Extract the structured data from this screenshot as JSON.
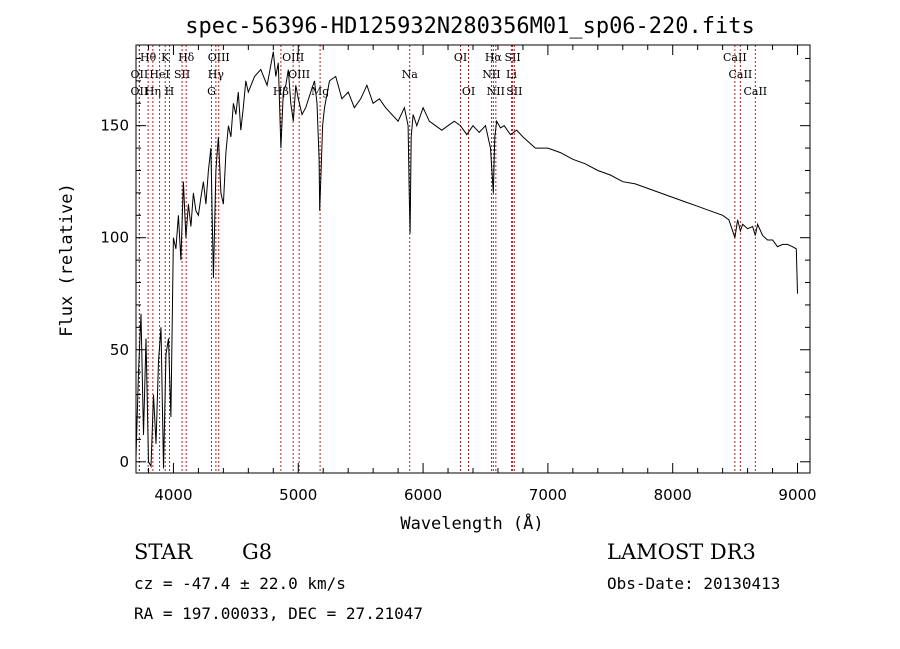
{
  "chart_data": {
    "type": "line",
    "title": "spec-56396-HD125932N280356M01_sp06-220.fits",
    "xlabel": "Wavelength (Å)",
    "ylabel": "Flux (relative)",
    "xlim": [
      3700,
      9100
    ],
    "ylim": [
      -5,
      186
    ],
    "x_ticks": [
      4000,
      5000,
      6000,
      7000,
      8000,
      9000
    ],
    "y_ticks": [
      0,
      50,
      100,
      150
    ],
    "grid": false,
    "line_color": "#000000",
    "marker_color": "#b22222",
    "series": [
      {
        "x": [
          3700,
          3720,
          3740,
          3760,
          3780,
          3800,
          3820,
          3840,
          3860,
          3880,
          3900,
          3920,
          3940,
          3960,
          3980,
          4000,
          4020,
          4040,
          4060,
          4080,
          4100,
          4120,
          4140,
          4160,
          4180,
          4200,
          4220,
          4240,
          4260,
          4280,
          4300,
          4320,
          4340,
          4360,
          4380,
          4400,
          4420,
          4440,
          4460,
          4480,
          4500,
          4520,
          4540,
          4560,
          4580,
          4600,
          4650,
          4700,
          4750,
          4800,
          4820,
          4840,
          4861,
          4880,
          4900,
          4920,
          4940,
          4960,
          4980,
          5000,
          5030,
          5060,
          5100,
          5130,
          5150,
          5167,
          5172,
          5183,
          5195,
          5210,
          5250,
          5300,
          5350,
          5400,
          5450,
          5500,
          5550,
          5600,
          5650,
          5700,
          5750,
          5800,
          5850,
          5880,
          5890,
          5896,
          5905,
          5920,
          5950,
          6000,
          6050,
          6100,
          6150,
          6200,
          6250,
          6300,
          6350,
          6400,
          6450,
          6500,
          6540,
          6563,
          6575,
          6590,
          6620,
          6650,
          6700,
          6750,
          6800,
          6900,
          7000,
          7100,
          7200,
          7300,
          7400,
          7500,
          7600,
          7700,
          7800,
          7900,
          8000,
          8100,
          8200,
          8300,
          8400,
          8450,
          8498,
          8520,
          8542,
          8560,
          8600,
          8640,
          8662,
          8680,
          8720,
          8760,
          8800,
          8840,
          8880,
          8920,
          8960,
          8990,
          9000
        ],
        "y": [
          2,
          40,
          66,
          12,
          55,
          0,
          -2,
          30,
          8,
          45,
          60,
          -3,
          48,
          55,
          20,
          100,
          95,
          110,
          90,
          125,
          100,
          115,
          105,
          120,
          112,
          110,
          118,
          125,
          115,
          130,
          140,
          82,
          130,
          145,
          120,
          115,
          138,
          150,
          145,
          160,
          155,
          165,
          148,
          158,
          170,
          165,
          172,
          175,
          168,
          183,
          172,
          178,
          140,
          165,
          168,
          175,
          160,
          152,
          168,
          162,
          155,
          158,
          165,
          170,
          160,
          135,
          112,
          130,
          150,
          158,
          170,
          172,
          162,
          165,
          158,
          162,
          168,
          160,
          162,
          158,
          155,
          152,
          158,
          150,
          118,
          102,
          145,
          155,
          150,
          158,
          152,
          150,
          148,
          150,
          152,
          150,
          146,
          150,
          147,
          150,
          140,
          120,
          145,
          152,
          149,
          150,
          146,
          148,
          145,
          140,
          140,
          138,
          135,
          133,
          130,
          128,
          125,
          124,
          122,
          120,
          118,
          116,
          114,
          112,
          110,
          108,
          100,
          108,
          103,
          106,
          104,
          105,
          101,
          106,
          101,
          99,
          99,
          96,
          97,
          97,
          96,
          95,
          75
        ]
      }
    ],
    "lines": [
      {
        "label": "Hθ",
        "w": 3797,
        "row": 0
      },
      {
        "label": "K",
        "w": 3934,
        "row": 0
      },
      {
        "label": "Hδ",
        "w": 4102,
        "row": 0
      },
      {
        "label": "OIII",
        "w": 4363,
        "row": 0
      },
      {
        "label": "OIII",
        "w": 4959,
        "row": 0
      },
      {
        "label": "Na",
        "w": 5893,
        "row": 1
      },
      {
        "label": "OI",
        "w": 6300,
        "row": 0
      },
      {
        "label": "Hα",
        "w": 6563,
        "row": 0
      },
      {
        "label": "SII",
        "w": 6717,
        "row": 0
      },
      {
        "label": "CaII",
        "w": 8498,
        "row": 0
      },
      {
        "label": "OII",
        "w": 3727,
        "row": 1
      },
      {
        "label": "HeI",
        "w": 3889,
        "row": 1
      },
      {
        "label": "SII",
        "w": 4069,
        "row": 1
      },
      {
        "label": "Hγ",
        "w": 4340,
        "row": 1
      },
      {
        "label": "OIII",
        "w": 5007,
        "row": 1
      },
      {
        "label": "NII",
        "w": 6548,
        "row": 1
      },
      {
        "label": "Li",
        "w": 6708,
        "row": 1
      },
      {
        "label": "CaII",
        "w": 8542,
        "row": 1
      },
      {
        "label": "OII",
        "w": 3727,
        "row": 2
      },
      {
        "label": "Hη",
        "w": 3835,
        "row": 2
      },
      {
        "label": "H",
        "w": 3968,
        "row": 2
      },
      {
        "label": "G",
        "w": 4305,
        "row": 2
      },
      {
        "label": "Hβ",
        "w": 4861,
        "row": 2
      },
      {
        "label": "Mg",
        "w": 5175,
        "row": 2
      },
      {
        "label": "OI",
        "w": 6364,
        "row": 2
      },
      {
        "label": "NII",
        "w": 6583,
        "row": 2
      },
      {
        "label": "SII",
        "w": 6731,
        "row": 2
      },
      {
        "label": "CaII",
        "w": 8662,
        "row": 2
      }
    ]
  },
  "footer": {
    "object_type": "STAR",
    "subclass": "G8",
    "cz": "cz = -47.4 ± 22.0 km/s",
    "coords": "RA = 197.00033, DEC =  27.21047",
    "survey": "LAMOST DR3",
    "obs_date": "Obs-Date: 20130413"
  }
}
